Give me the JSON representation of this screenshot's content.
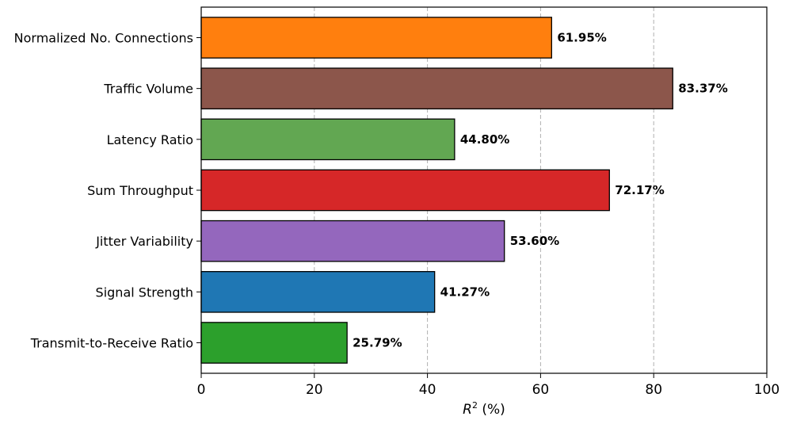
{
  "chart_data": {
    "type": "bar",
    "orientation": "horizontal",
    "categories": [
      "Normalized No. Connections",
      "Traffic Volume",
      "Latency Ratio",
      "Sum Throughput",
      "Jitter Variability",
      "Signal Strength",
      "Transmit-to-Receive Ratio"
    ],
    "values": [
      61.95,
      83.37,
      44.8,
      72.17,
      53.6,
      41.27,
      25.79
    ],
    "value_labels": [
      "61.95%",
      "83.37%",
      "44.80%",
      "72.17%",
      "53.60%",
      "41.27%",
      "25.79%"
    ],
    "colors": [
      "#ff7f0e",
      "#8c564b",
      "#62a752",
      "#d62728",
      "#9467bd",
      "#1f77b4",
      "#2ca02c"
    ],
    "title": "",
    "xlabel_main": "R",
    "xlabel_sup": "2",
    "xlabel_unit": " (%)",
    "ylabel": "",
    "xlim": [
      0,
      100
    ],
    "xticks": [
      "0",
      "20",
      "40",
      "60",
      "80",
      "100"
    ],
    "grid": "x-axis dashed"
  }
}
